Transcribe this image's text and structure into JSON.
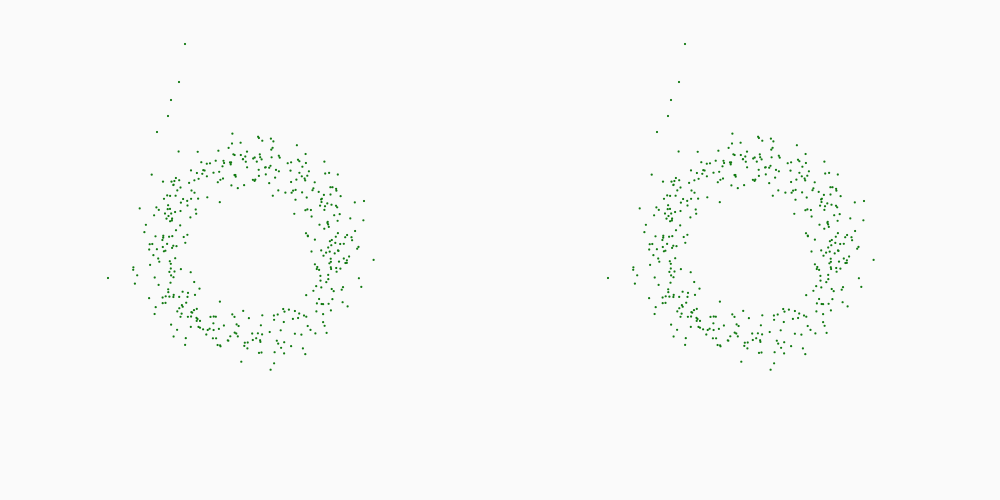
{
  "colors": {
    "background": "#fafafa",
    "point": "#127a12"
  },
  "chart_data": [
    {
      "type": "scatter",
      "title": "",
      "xlabel": "",
      "ylabel": "",
      "axes_visible": false,
      "grid": false,
      "legend": "none",
      "xlim": [
        0,
        500
      ],
      "ylim": [
        0,
        500
      ],
      "seed": 1234,
      "series": [
        {
          "color": "#127a12",
          "shape": "ring",
          "n_ring": 430,
          "ring_center": [
            250,
            250
          ],
          "ring_inner_radius": 55,
          "ring_outer_radius": 125,
          "tail_points": [
            [
              185,
              456
            ],
            [
              179,
              418
            ],
            [
              171,
              400
            ],
            [
              168,
              384
            ],
            [
              157,
              368
            ],
            [
              108,
              222
            ]
          ]
        }
      ]
    },
    {
      "type": "scatter",
      "title": "",
      "xlabel": "",
      "ylabel": "",
      "axes_visible": false,
      "grid": false,
      "legend": "none",
      "xlim": [
        0,
        500
      ],
      "ylim": [
        0,
        500
      ],
      "seed": 1234,
      "series": [
        {
          "color": "#127a12",
          "shape": "ring",
          "n_ring": 430,
          "ring_center": [
            250,
            250
          ],
          "ring_inner_radius": 55,
          "ring_outer_radius": 125,
          "tail_points": [
            [
              185,
              456
            ],
            [
              179,
              418
            ],
            [
              171,
              400
            ],
            [
              168,
              384
            ],
            [
              157,
              368
            ],
            [
              108,
              222
            ]
          ]
        }
      ]
    }
  ]
}
